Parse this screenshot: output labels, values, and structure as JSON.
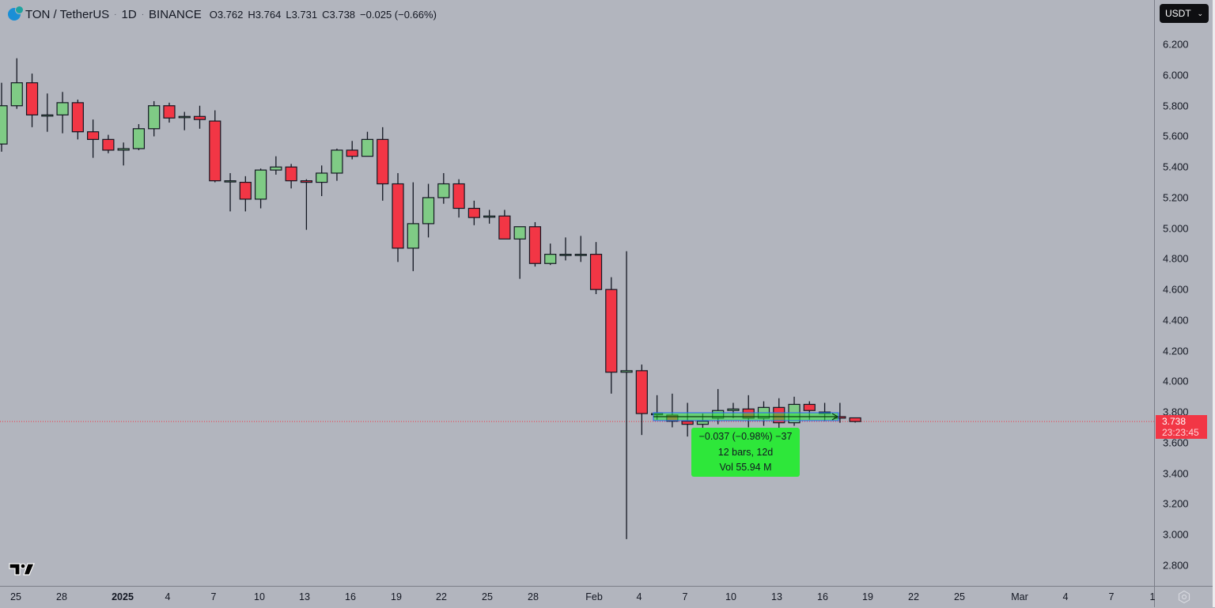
{
  "header": {
    "symbol": "TON / TetherUS",
    "interval": "1D",
    "exchange": "BINANCE",
    "open_label": "O",
    "open": "3.762",
    "high_label": "H",
    "high": "3.764",
    "low_label": "L",
    "low": "3.731",
    "close_label": "C",
    "close": "3.738",
    "change": "−0.025 (−0.66%)",
    "logo_icon": "ton-coin-icon"
  },
  "currency_selector": {
    "value": "USDT",
    "icon": "chevron-down-icon"
  },
  "last_price_tag": {
    "price": "3.738",
    "countdown": "23:23:45",
    "color": "#f23645"
  },
  "measure_tool": {
    "line1": "−0.037 (−0.98%) −37",
    "line2": "12 bars, 12d",
    "line3": "Vol 55.94 M",
    "color": "#2ee73a"
  },
  "colors": {
    "background": "#b2b5be",
    "up": "#7fcb85",
    "down": "#f23645",
    "outline": "#131722",
    "last_price_line": "#f23645"
  },
  "chart_data": {
    "type": "candlestick",
    "title": "TON / TetherUS · 1D · BINANCE",
    "xlabel": "",
    "ylabel": "USDT",
    "ylim": [
      2.7,
      6.3
    ],
    "grid": false,
    "price_ticks": [
      "6.200",
      "6.000",
      "5.800",
      "5.600",
      "5.400",
      "5.200",
      "5.000",
      "4.800",
      "4.600",
      "4.400",
      "4.200",
      "4.000",
      "3.800",
      "3.600",
      "3.400",
      "3.200",
      "3.000",
      "2.800"
    ],
    "time_ticks": [
      {
        "label": "25",
        "x": 20
      },
      {
        "label": "28",
        "x": 78
      },
      {
        "label": "2025",
        "x": 155,
        "bold": true
      },
      {
        "label": "4",
        "x": 212
      },
      {
        "label": "7",
        "x": 270
      },
      {
        "label": "10",
        "x": 328
      },
      {
        "label": "13",
        "x": 385
      },
      {
        "label": "16",
        "x": 443
      },
      {
        "label": "19",
        "x": 501
      },
      {
        "label": "22",
        "x": 558
      },
      {
        "label": "25",
        "x": 616
      },
      {
        "label": "28",
        "x": 674
      },
      {
        "label": "Feb",
        "x": 751
      },
      {
        "label": "4",
        "x": 808
      },
      {
        "label": "7",
        "x": 866
      },
      {
        "label": "10",
        "x": 924
      },
      {
        "label": "13",
        "x": 982
      },
      {
        "label": "16",
        "x": 1040
      },
      {
        "label": "19",
        "x": 1097
      },
      {
        "label": "22",
        "x": 1155
      },
      {
        "label": "25",
        "x": 1213
      },
      {
        "label": "Mar",
        "x": 1289
      },
      {
        "label": "4",
        "x": 1347
      },
      {
        "label": "7",
        "x": 1405
      },
      {
        "label": "1",
        "x": 1457
      }
    ],
    "candles": [
      {
        "date": "2024-12-24",
        "o": 5.55,
        "h": 5.95,
        "l": 5.5,
        "c": 5.8
      },
      {
        "date": "2024-12-25",
        "o": 5.8,
        "h": 6.11,
        "l": 5.78,
        "c": 5.95
      },
      {
        "date": "2024-12-26",
        "o": 5.95,
        "h": 6.01,
        "l": 5.66,
        "c": 5.74
      },
      {
        "date": "2024-12-27",
        "o": 5.74,
        "h": 5.88,
        "l": 5.63,
        "c": 5.74
      },
      {
        "date": "2024-12-28",
        "o": 5.74,
        "h": 5.89,
        "l": 5.62,
        "c": 5.82
      },
      {
        "date": "2024-12-29",
        "o": 5.82,
        "h": 5.84,
        "l": 5.58,
        "c": 5.63
      },
      {
        "date": "2024-12-30",
        "o": 5.63,
        "h": 5.71,
        "l": 5.46,
        "c": 5.58
      },
      {
        "date": "2024-12-31",
        "o": 5.58,
        "h": 5.61,
        "l": 5.49,
        "c": 5.51
      },
      {
        "date": "2025-01-01",
        "o": 5.51,
        "h": 5.56,
        "l": 5.41,
        "c": 5.52
      },
      {
        "date": "2025-01-02",
        "o": 5.52,
        "h": 5.68,
        "l": 5.51,
        "c": 5.65
      },
      {
        "date": "2025-01-03",
        "o": 5.65,
        "h": 5.83,
        "l": 5.6,
        "c": 5.8
      },
      {
        "date": "2025-01-04",
        "o": 5.8,
        "h": 5.82,
        "l": 5.69,
        "c": 5.72
      },
      {
        "date": "2025-01-05",
        "o": 5.73,
        "h": 5.76,
        "l": 5.64,
        "c": 5.73
      },
      {
        "date": "2025-01-06",
        "o": 5.73,
        "h": 5.8,
        "l": 5.65,
        "c": 5.71
      },
      {
        "date": "2025-01-07",
        "o": 5.7,
        "h": 5.77,
        "l": 5.3,
        "c": 5.31
      },
      {
        "date": "2025-01-08",
        "o": 5.31,
        "h": 5.36,
        "l": 5.11,
        "c": 5.31
      },
      {
        "date": "2025-01-09",
        "o": 5.3,
        "h": 5.34,
        "l": 5.11,
        "c": 5.19
      },
      {
        "date": "2025-01-10",
        "o": 5.19,
        "h": 5.39,
        "l": 5.13,
        "c": 5.38
      },
      {
        "date": "2025-01-11",
        "o": 5.38,
        "h": 5.47,
        "l": 5.35,
        "c": 5.4
      },
      {
        "date": "2025-01-12",
        "o": 5.4,
        "h": 5.42,
        "l": 5.26,
        "c": 5.31
      },
      {
        "date": "2025-01-13",
        "o": 5.31,
        "h": 5.32,
        "l": 4.99,
        "c": 5.3
      },
      {
        "date": "2025-01-14",
        "o": 5.3,
        "h": 5.41,
        "l": 5.21,
        "c": 5.36
      },
      {
        "date": "2025-01-15",
        "o": 5.36,
        "h": 5.52,
        "l": 5.31,
        "c": 5.51
      },
      {
        "date": "2025-01-16",
        "o": 5.51,
        "h": 5.57,
        "l": 5.45,
        "c": 5.47
      },
      {
        "date": "2025-01-17",
        "o": 5.47,
        "h": 5.63,
        "l": 5.47,
        "c": 5.58
      },
      {
        "date": "2025-01-18",
        "o": 5.58,
        "h": 5.66,
        "l": 5.18,
        "c": 5.29
      },
      {
        "date": "2025-01-19",
        "o": 5.29,
        "h": 5.36,
        "l": 4.78,
        "c": 4.87
      },
      {
        "date": "2025-01-20",
        "o": 4.87,
        "h": 5.3,
        "l": 4.72,
        "c": 5.03
      },
      {
        "date": "2025-01-21",
        "o": 5.03,
        "h": 5.29,
        "l": 4.94,
        "c": 5.2
      },
      {
        "date": "2025-01-22",
        "o": 5.2,
        "h": 5.36,
        "l": 5.16,
        "c": 5.29
      },
      {
        "date": "2025-01-23",
        "o": 5.29,
        "h": 5.32,
        "l": 5.07,
        "c": 5.13
      },
      {
        "date": "2025-01-24",
        "o": 5.13,
        "h": 5.18,
        "l": 5.02,
        "c": 5.07
      },
      {
        "date": "2025-01-25",
        "o": 5.08,
        "h": 5.12,
        "l": 5.03,
        "c": 5.08
      },
      {
        "date": "2025-01-26",
        "o": 5.08,
        "h": 5.12,
        "l": 4.93,
        "c": 4.93
      },
      {
        "date": "2025-01-27",
        "o": 4.93,
        "h": 5.01,
        "l": 4.67,
        "c": 5.01
      },
      {
        "date": "2025-01-28",
        "o": 5.01,
        "h": 5.04,
        "l": 4.75,
        "c": 4.77
      },
      {
        "date": "2025-01-29",
        "o": 4.77,
        "h": 4.9,
        "l": 4.76,
        "c": 4.83
      },
      {
        "date": "2025-01-30",
        "o": 4.83,
        "h": 4.94,
        "l": 4.79,
        "c": 4.83
      },
      {
        "date": "2025-01-31",
        "o": 4.83,
        "h": 4.95,
        "l": 4.78,
        "c": 4.83
      },
      {
        "date": "2025-02-01",
        "o": 4.83,
        "h": 4.91,
        "l": 4.57,
        "c": 4.6
      },
      {
        "date": "2025-02-02",
        "o": 4.6,
        "h": 4.68,
        "l": 3.92,
        "c": 4.06
      },
      {
        "date": "2025-02-03",
        "o": 4.06,
        "h": 4.85,
        "l": 2.97,
        "c": 4.07
      },
      {
        "date": "2025-02-04",
        "o": 4.07,
        "h": 4.11,
        "l": 3.65,
        "c": 3.79
      },
      {
        "date": "2025-02-05",
        "o": 3.79,
        "h": 3.91,
        "l": 3.75,
        "c": 3.79
      },
      {
        "date": "2025-02-06",
        "o": 3.78,
        "h": 3.92,
        "l": 3.7,
        "c": 3.74
      },
      {
        "date": "2025-02-07",
        "o": 3.74,
        "h": 3.86,
        "l": 3.64,
        "c": 3.72
      },
      {
        "date": "2025-02-08",
        "o": 3.72,
        "h": 3.79,
        "l": 3.69,
        "c": 3.74
      },
      {
        "date": "2025-02-09",
        "o": 3.76,
        "h": 3.95,
        "l": 3.72,
        "c": 3.81
      },
      {
        "date": "2025-02-10",
        "o": 3.81,
        "h": 3.86,
        "l": 3.76,
        "c": 3.82
      },
      {
        "date": "2025-02-11",
        "o": 3.82,
        "h": 3.91,
        "l": 3.7,
        "c": 3.76
      },
      {
        "date": "2025-02-12",
        "o": 3.76,
        "h": 3.87,
        "l": 3.71,
        "c": 3.83
      },
      {
        "date": "2025-02-13",
        "o": 3.83,
        "h": 3.89,
        "l": 3.69,
        "c": 3.73
      },
      {
        "date": "2025-02-14",
        "o": 3.73,
        "h": 3.9,
        "l": 3.71,
        "c": 3.85
      },
      {
        "date": "2025-02-15",
        "o": 3.85,
        "h": 3.87,
        "l": 3.75,
        "c": 3.81
      },
      {
        "date": "2025-02-16",
        "o": 3.8,
        "h": 3.86,
        "l": 3.74,
        "c": 3.79
      },
      {
        "date": "2025-02-17",
        "o": 3.77,
        "h": 3.86,
        "l": 3.73,
        "c": 3.76
      },
      {
        "date": "2025-02-18",
        "o": 3.762,
        "h": 3.764,
        "l": 3.731,
        "c": 3.738
      }
    ]
  }
}
